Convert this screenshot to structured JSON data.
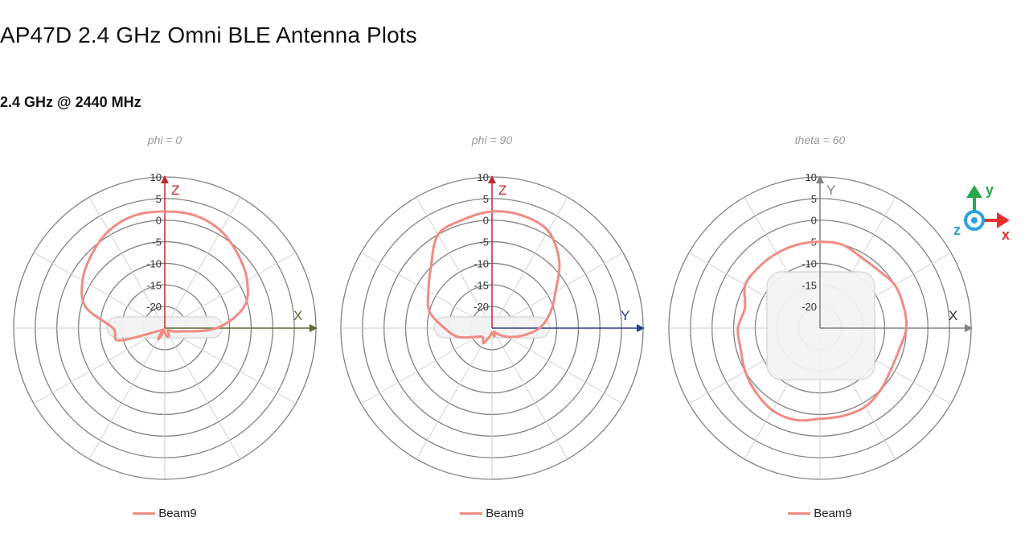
{
  "page": {
    "title": "AP47D 2.4 GHz Omni BLE Antenna Plots",
    "section_heading": "2.4 GHz @ 2440 MHz"
  },
  "colors": {
    "beam": "#f08b82",
    "grid": "#808080",
    "axis_z": "#c0282d",
    "axis_x": "#5b6b2f",
    "axis_y_blue": "#2a3f8f",
    "axis_gray": "#808080",
    "gizmo_x": "#e8312f",
    "gizmo_y": "#27a84a",
    "gizmo_z": "#29a3dc"
  },
  "gizmo": {
    "x_label": "x",
    "y_label": "y",
    "z_label": "z"
  },
  "chart_data": [
    {
      "type": "polar",
      "title": "phi = 0",
      "radial_ticks": [
        10,
        5,
        0,
        -5,
        -10,
        -15,
        -20
      ],
      "rlim": [
        -25,
        10
      ],
      "axis_labels": {
        "vertical": "Z",
        "horizontal": "X"
      },
      "legend": [
        {
          "name": "Beam9",
          "color": "#f08b82"
        }
      ],
      "series": [
        {
          "name": "Beam9",
          "angles_deg": [
            0,
            15,
            30,
            45,
            60,
            75,
            90,
            105,
            120,
            135,
            150,
            165,
            180,
            195,
            210,
            225,
            240,
            255,
            270,
            285,
            300,
            315,
            330,
            345
          ],
          "values_db": [
            2,
            2,
            1,
            -1,
            -3,
            -6,
            -13,
            -22,
            -24,
            -24,
            -23,
            -23,
            -24,
            -24,
            -22,
            -24,
            -24,
            -14,
            -13,
            -6,
            -3,
            -1,
            1,
            2
          ]
        }
      ]
    },
    {
      "type": "polar",
      "title": "phi = 90",
      "radial_ticks": [
        10,
        5,
        0,
        -5,
        -10,
        -15,
        -20
      ],
      "rlim": [
        -25,
        10
      ],
      "axis_labels": {
        "vertical": "Z",
        "horizontal": "Y"
      },
      "legend": [
        {
          "name": "Beam9",
          "color": "#f08b82"
        }
      ],
      "series": [
        {
          "name": "Beam9",
          "angles_deg": [
            0,
            15,
            30,
            45,
            60,
            75,
            90,
            105,
            120,
            135,
            150,
            165,
            180,
            195,
            210,
            225,
            240,
            255,
            270,
            285,
            300,
            315,
            330,
            345
          ],
          "values_db": [
            2,
            2,
            1,
            -3,
            -8,
            -11,
            -14,
            -18,
            -21,
            -23,
            -24,
            -23,
            -24,
            -23,
            -21,
            -22,
            -21,
            -17,
            -14,
            -10,
            -8,
            -5,
            0,
            1
          ]
        }
      ]
    },
    {
      "type": "polar",
      "title": "theta = 60",
      "radial_ticks": [
        10,
        5,
        0,
        -5,
        -10,
        -15,
        -20
      ],
      "rlim": [
        -25,
        10
      ],
      "axis_labels": {
        "vertical": "Y",
        "horizontal": "X"
      },
      "legend": [
        {
          "name": "Beam9",
          "color": "#f08b82"
        }
      ],
      "series": [
        {
          "name": "Beam9",
          "angles_deg": [
            0,
            15,
            30,
            45,
            60,
            75,
            90,
            105,
            120,
            135,
            150,
            165,
            180,
            195,
            210,
            225,
            240,
            255,
            270,
            285,
            300,
            315,
            330,
            345
          ],
          "values_db": [
            -5,
            -5,
            -6,
            -6,
            -5,
            -5,
            -5,
            -6,
            -6,
            -5,
            -4,
            -4,
            -4,
            -3,
            -3,
            -4,
            -5,
            -6,
            -6,
            -7,
            -5,
            -5,
            -5,
            -5
          ]
        }
      ]
    }
  ]
}
